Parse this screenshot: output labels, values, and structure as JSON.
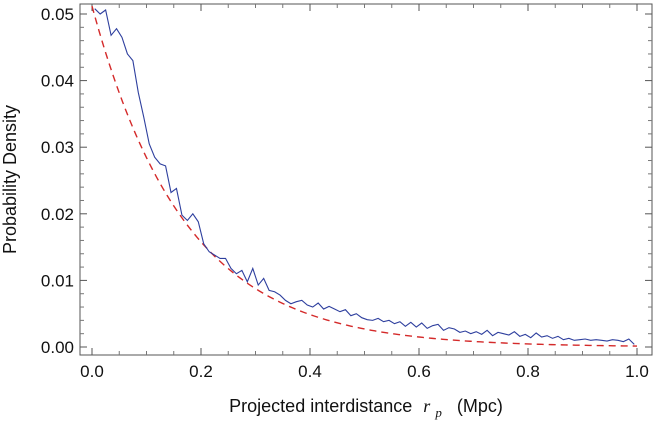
{
  "chart_data": {
    "type": "line",
    "xlabel": "Projected interdistance",
    "xlabel_var": "r",
    "xlabel_sub": "p",
    "xlabel_unit": "(Mpc)",
    "ylabel": "Probability Density",
    "xlim": [
      0.0,
      1.0
    ],
    "ylim": [
      0.0,
      0.05
    ],
    "xticks": [
      "0.0",
      "0.2",
      "0.4",
      "0.6",
      "0.8",
      "1.0"
    ],
    "yticks": [
      "0.00",
      "0.01",
      "0.02",
      "0.03",
      "0.04",
      "0.05"
    ],
    "grid": false,
    "legend": "none",
    "series": [
      {
        "style": "solid",
        "color": "#2e3f9e",
        "x": [
          0.005,
          0.015,
          0.025,
          0.035,
          0.045,
          0.055,
          0.065,
          0.075,
          0.085,
          0.095,
          0.105,
          0.115,
          0.125,
          0.135,
          0.145,
          0.155,
          0.165,
          0.175,
          0.185,
          0.195,
          0.205,
          0.215,
          0.225,
          0.235,
          0.245,
          0.255,
          0.265,
          0.275,
          0.285,
          0.295,
          0.305,
          0.315,
          0.325,
          0.335,
          0.345,
          0.355,
          0.365,
          0.375,
          0.385,
          0.395,
          0.405,
          0.415,
          0.425,
          0.435,
          0.445,
          0.455,
          0.465,
          0.475,
          0.485,
          0.495,
          0.505,
          0.515,
          0.525,
          0.535,
          0.545,
          0.555,
          0.565,
          0.575,
          0.585,
          0.595,
          0.605,
          0.615,
          0.625,
          0.635,
          0.645,
          0.655,
          0.665,
          0.675,
          0.685,
          0.695,
          0.705,
          0.715,
          0.725,
          0.735,
          0.745,
          0.755,
          0.765,
          0.775,
          0.785,
          0.795,
          0.805,
          0.815,
          0.825,
          0.835,
          0.845,
          0.855,
          0.865,
          0.875,
          0.885,
          0.895,
          0.905,
          0.915,
          0.925,
          0.935,
          0.945,
          0.955,
          0.965,
          0.975,
          0.985,
          0.995
        ],
        "y": [
          0.0508,
          0.05,
          0.0506,
          0.0468,
          0.0478,
          0.0465,
          0.044,
          0.043,
          0.0382,
          0.0345,
          0.0305,
          0.0285,
          0.0275,
          0.0272,
          0.0232,
          0.0238,
          0.0198,
          0.019,
          0.02,
          0.0188,
          0.0155,
          0.0143,
          0.0138,
          0.0133,
          0.0133,
          0.0118,
          0.011,
          0.0115,
          0.0098,
          0.0118,
          0.0093,
          0.0103,
          0.0085,
          0.0083,
          0.0078,
          0.007,
          0.0065,
          0.0068,
          0.007,
          0.0063,
          0.006,
          0.0066,
          0.0057,
          0.0061,
          0.0057,
          0.0053,
          0.0056,
          0.0047,
          0.005,
          0.0044,
          0.0041,
          0.004,
          0.0043,
          0.0038,
          0.004,
          0.0035,
          0.0038,
          0.0031,
          0.0037,
          0.003,
          0.0036,
          0.0028,
          0.0032,
          0.0034,
          0.0025,
          0.0029,
          0.0027,
          0.0022,
          0.0024,
          0.002,
          0.0023,
          0.0019,
          0.0025,
          0.0017,
          0.0022,
          0.002,
          0.0018,
          0.0023,
          0.0016,
          0.0019,
          0.0014,
          0.0021,
          0.0015,
          0.0017,
          0.0013,
          0.0016,
          0.0011,
          0.0013,
          0.001,
          0.0011,
          0.0012,
          0.001,
          0.0011,
          0.001,
          0.0009,
          0.0011,
          0.001,
          0.0008,
          0.0012,
          0.0004
        ]
      },
      {
        "style": "dashed",
        "color": "#d42a2a",
        "function": "exponential",
        "amplitude": 0.0512,
        "scale": 0.17,
        "samples": 160
      }
    ]
  }
}
